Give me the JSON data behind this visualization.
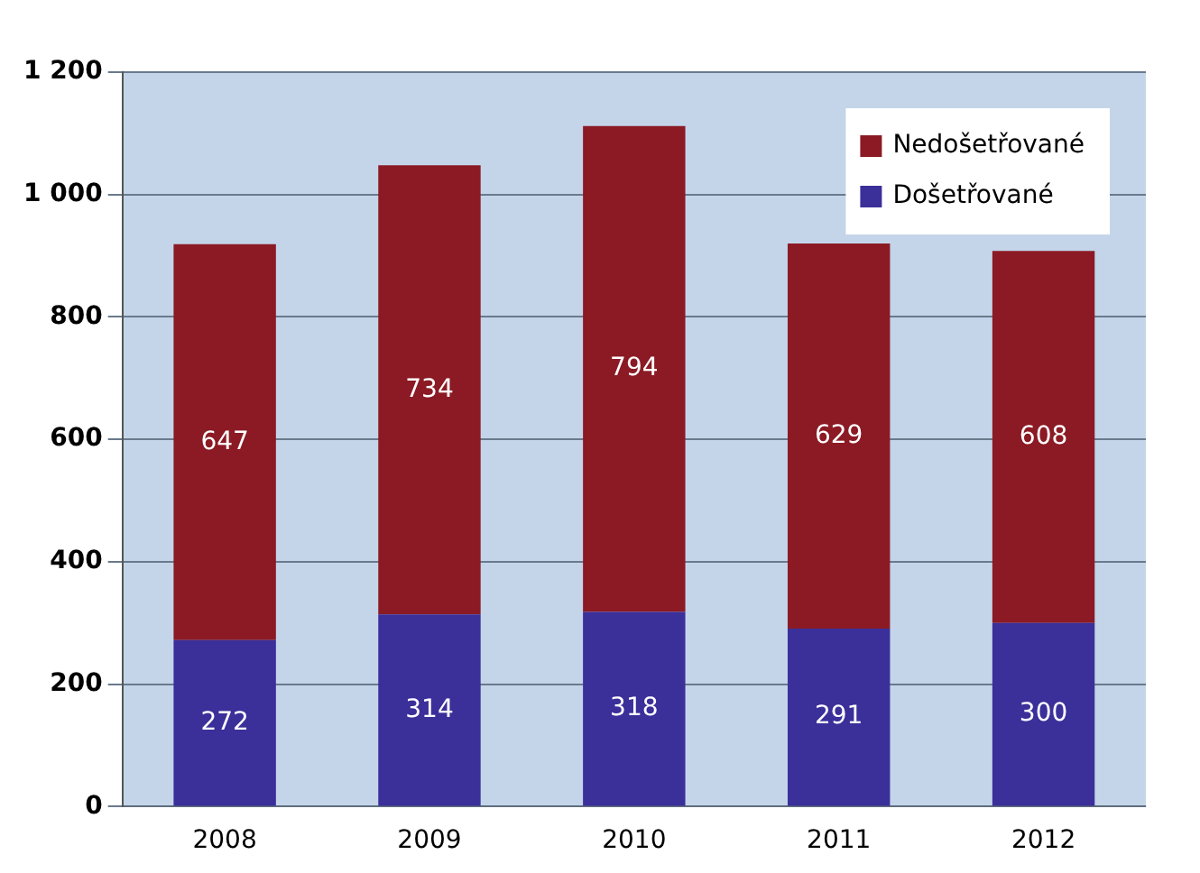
{
  "chart_data": {
    "type": "bar",
    "stacked": true,
    "categories": [
      "2008",
      "2009",
      "2010",
      "2011",
      "2012"
    ],
    "series": [
      {
        "name": "Došetřované",
        "color": "#3b2f9a",
        "values": [
          272,
          314,
          318,
          291,
          300
        ]
      },
      {
        "name": "Nedošetřované",
        "color": "#8b1a24",
        "values": [
          647,
          734,
          794,
          629,
          608
        ]
      }
    ],
    "ylim": [
      0,
      1200
    ],
    "yticks": [
      0,
      200,
      400,
      600,
      800,
      {
        "value": 1000,
        "label": "1 000"
      },
      {
        "value": 1200,
        "label": "1 200"
      }
    ],
    "grid": "y",
    "legend": "top right",
    "data_labels": true
  }
}
